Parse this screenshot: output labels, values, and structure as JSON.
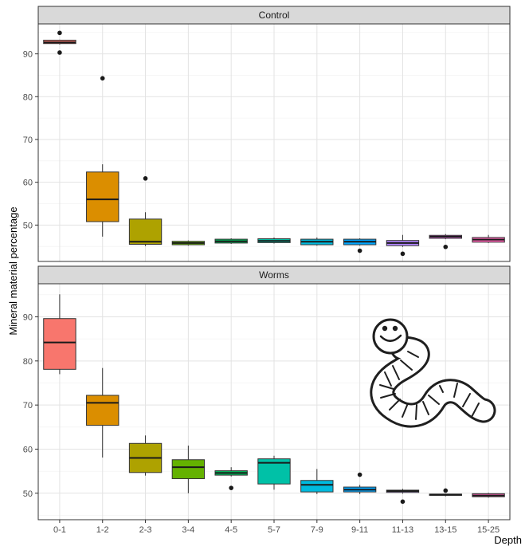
{
  "chart_data": {
    "type": "box",
    "xlabel": "Depth",
    "ylabel": "Mineral material percentage",
    "grid": true,
    "categories": [
      "0-1",
      "1-2",
      "2-3",
      "3-4",
      "4-5",
      "5-7",
      "7-9",
      "9-11",
      "11-13",
      "13-15",
      "15-25"
    ],
    "colors": [
      "#F8766D",
      "#DB8E00",
      "#AEA200",
      "#64B200",
      "#00BD5C",
      "#00C1A7",
      "#00BADE",
      "#00A6FF",
      "#B385FF",
      "#EF67EB",
      "#FF63B6"
    ],
    "panels": [
      {
        "title": "Control",
        "ylim": [
          41.5,
          97
        ],
        "yticks": [
          50,
          60,
          70,
          80,
          90
        ],
        "boxes": [
          {
            "q1": 92.4,
            "median": 92.7,
            "q3": 93.2,
            "wlow": 92.2,
            "whigh": 93.3,
            "outliers": [
              90.3,
              94.9
            ]
          },
          {
            "q1": 50.8,
            "median": 56.0,
            "q3": 62.4,
            "wlow": 47.3,
            "whigh": 64.2,
            "outliers": [
              84.3
            ]
          },
          {
            "q1": 45.5,
            "median": 46.1,
            "q3": 51.4,
            "wlow": 45.1,
            "whigh": 53.0,
            "outliers": [
              60.9
            ]
          },
          {
            "q1": 45.4,
            "median": 45.8,
            "q3": 46.2,
            "wlow": 45.2,
            "whigh": 46.4,
            "outliers": []
          },
          {
            "q1": 45.8,
            "median": 46.2,
            "q3": 46.7,
            "wlow": 45.6,
            "whigh": 46.9,
            "outliers": []
          },
          {
            "q1": 45.9,
            "median": 46.3,
            "q3": 46.8,
            "wlow": 45.7,
            "whigh": 47.1,
            "outliers": []
          },
          {
            "q1": 45.4,
            "median": 46.1,
            "q3": 46.7,
            "wlow": 45.2,
            "whigh": 47.1,
            "outliers": []
          },
          {
            "q1": 45.4,
            "median": 46.1,
            "q3": 46.7,
            "wlow": 45.2,
            "whigh": 46.9,
            "outliers": [
              44.0
            ]
          },
          {
            "q1": 45.2,
            "median": 45.8,
            "q3": 46.4,
            "wlow": 44.9,
            "whigh": 47.7,
            "outliers": [
              43.3
            ]
          },
          {
            "q1": 46.9,
            "median": 47.3,
            "q3": 47.6,
            "wlow": 46.7,
            "whigh": 47.9,
            "outliers": [
              44.9
            ]
          },
          {
            "q1": 46.0,
            "median": 46.6,
            "q3": 47.1,
            "wlow": 45.8,
            "whigh": 47.7,
            "outliers": []
          }
        ]
      },
      {
        "title": "Worms",
        "ylim": [
          44,
          97.5
        ],
        "yticks": [
          50,
          60,
          70,
          80,
          90
        ],
        "boxes": [
          {
            "q1": 78.1,
            "median": 84.2,
            "q3": 89.6,
            "wlow": 77.0,
            "whigh": 95.1,
            "outliers": []
          },
          {
            "q1": 65.4,
            "median": 70.5,
            "q3": 72.2,
            "wlow": 58.1,
            "whigh": 78.4,
            "outliers": []
          },
          {
            "q1": 54.7,
            "median": 58.0,
            "q3": 61.3,
            "wlow": 54.0,
            "whigh": 63.1,
            "outliers": []
          },
          {
            "q1": 53.3,
            "median": 55.9,
            "q3": 57.6,
            "wlow": 50.0,
            "whigh": 60.8,
            "outliers": []
          },
          {
            "q1": 54.1,
            "median": 54.6,
            "q3": 55.1,
            "wlow": 53.8,
            "whigh": 55.9,
            "outliers": [
              51.2
            ]
          },
          {
            "q1": 52.1,
            "median": 56.9,
            "q3": 57.8,
            "wlow": 50.8,
            "whigh": 58.5,
            "outliers": []
          },
          {
            "q1": 50.3,
            "median": 51.9,
            "q3": 52.9,
            "wlow": 49.8,
            "whigh": 55.5,
            "outliers": []
          },
          {
            "q1": 50.3,
            "median": 50.8,
            "q3": 51.4,
            "wlow": 49.8,
            "whigh": 51.9,
            "outliers": [
              54.2
            ]
          },
          {
            "q1": 50.2,
            "median": 50.5,
            "q3": 50.7,
            "wlow": 49.9,
            "whigh": 51.0,
            "outliers": [
              48.1
            ]
          },
          {
            "q1": 49.5,
            "median": 49.7,
            "q3": 49.8,
            "wlow": 49.3,
            "whigh": 49.9,
            "outliers": [
              50.6
            ]
          },
          {
            "q1": 49.2,
            "median": 49.5,
            "q3": 49.9,
            "wlow": 49.0,
            "whigh": 50.1,
            "outliers": []
          }
        ]
      }
    ]
  },
  "decoration": {
    "icon": "worm-icon"
  }
}
